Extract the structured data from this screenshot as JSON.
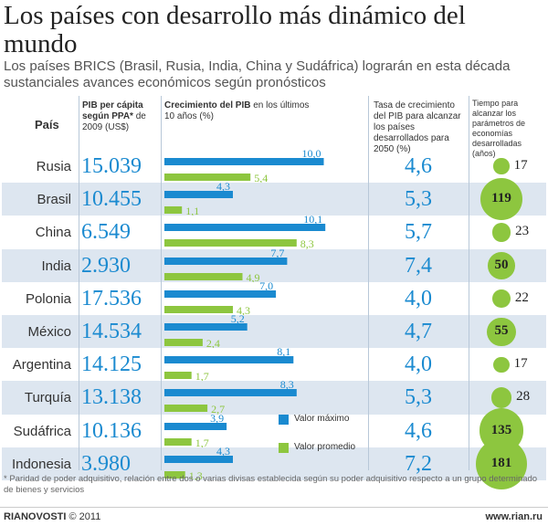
{
  "title": "Los países con desarrollo más dinámico del mundo",
  "subtitle": "Los países BRICS (Brasil, Rusia, India, China y Sudáfrica) lograrán en esta década sustanciales avances económicos según pronósticos",
  "headers": {
    "country": "País",
    "pib_bold": "PIB per cápita según PPA*",
    "pib_rest": " de 2009 (US$)",
    "growth_bold": "Crecimiento del PIB",
    "growth_rest": " en los últimos 10 años (%)",
    "rate": "Tasa de crecimiento del PIB para alcanzar los países desarrollados para 2050 (%)",
    "time": "Tiempo para alcanzar los parámetros de economías desarrolladas (años)"
  },
  "legend": {
    "max": "Valor máximo",
    "avg": "Valor promedio"
  },
  "colors": {
    "max": "#1a8ad0",
    "avg": "#8dc63f",
    "row_alt": "#dde6f0",
    "number": "#1a8ad0"
  },
  "chart_data": {
    "type": "table",
    "countries": [
      "Rusia",
      "Brasil",
      "China",
      "India",
      "Polonia",
      "México",
      "Argentina",
      "Turquía",
      "Sudáfrica",
      "Indonesia"
    ],
    "pib_per_capita": [
      "15.039",
      "10.455",
      "6.549",
      "2.930",
      "17.536",
      "14.534",
      "14.125",
      "13.138",
      "10.136",
      "3.980"
    ],
    "growth_max": [
      10.0,
      4.3,
      10.1,
      7.7,
      7.0,
      5.2,
      8.1,
      8.3,
      3.9,
      4.3
    ],
    "growth_max_labels": [
      "10,0",
      "4,3",
      "10,1",
      "7,7",
      "7,0",
      "5,2",
      "8,1",
      "8,3",
      "3,9",
      "4,3"
    ],
    "growth_avg": [
      5.4,
      1.1,
      8.3,
      4.9,
      4.3,
      2.4,
      1.7,
      2.7,
      1.7,
      1.3
    ],
    "growth_avg_labels": [
      "5,4",
      "1,1",
      "8,3",
      "4,9",
      "4,3",
      "2,4",
      "1,7",
      "2,7",
      "1,7",
      "1,3"
    ],
    "rate_2050": [
      "4,6",
      "5,3",
      "5,7",
      "7,4",
      "4,0",
      "4,7",
      "4,0",
      "5,3",
      "4,6",
      "7,2"
    ],
    "years": [
      17,
      119,
      23,
      50,
      22,
      55,
      17,
      28,
      135,
      181
    ]
  },
  "footnote": "* Paridad de poder adquisitivo, relación entre dos o varias divisas establecida según su poder adquisitivo respecto a un grupo determinado de bienes y servicios",
  "logo": {
    "brand": "RIANOVOSTI",
    "copyright": " © 2011"
  },
  "url": "www.rian.ru"
}
